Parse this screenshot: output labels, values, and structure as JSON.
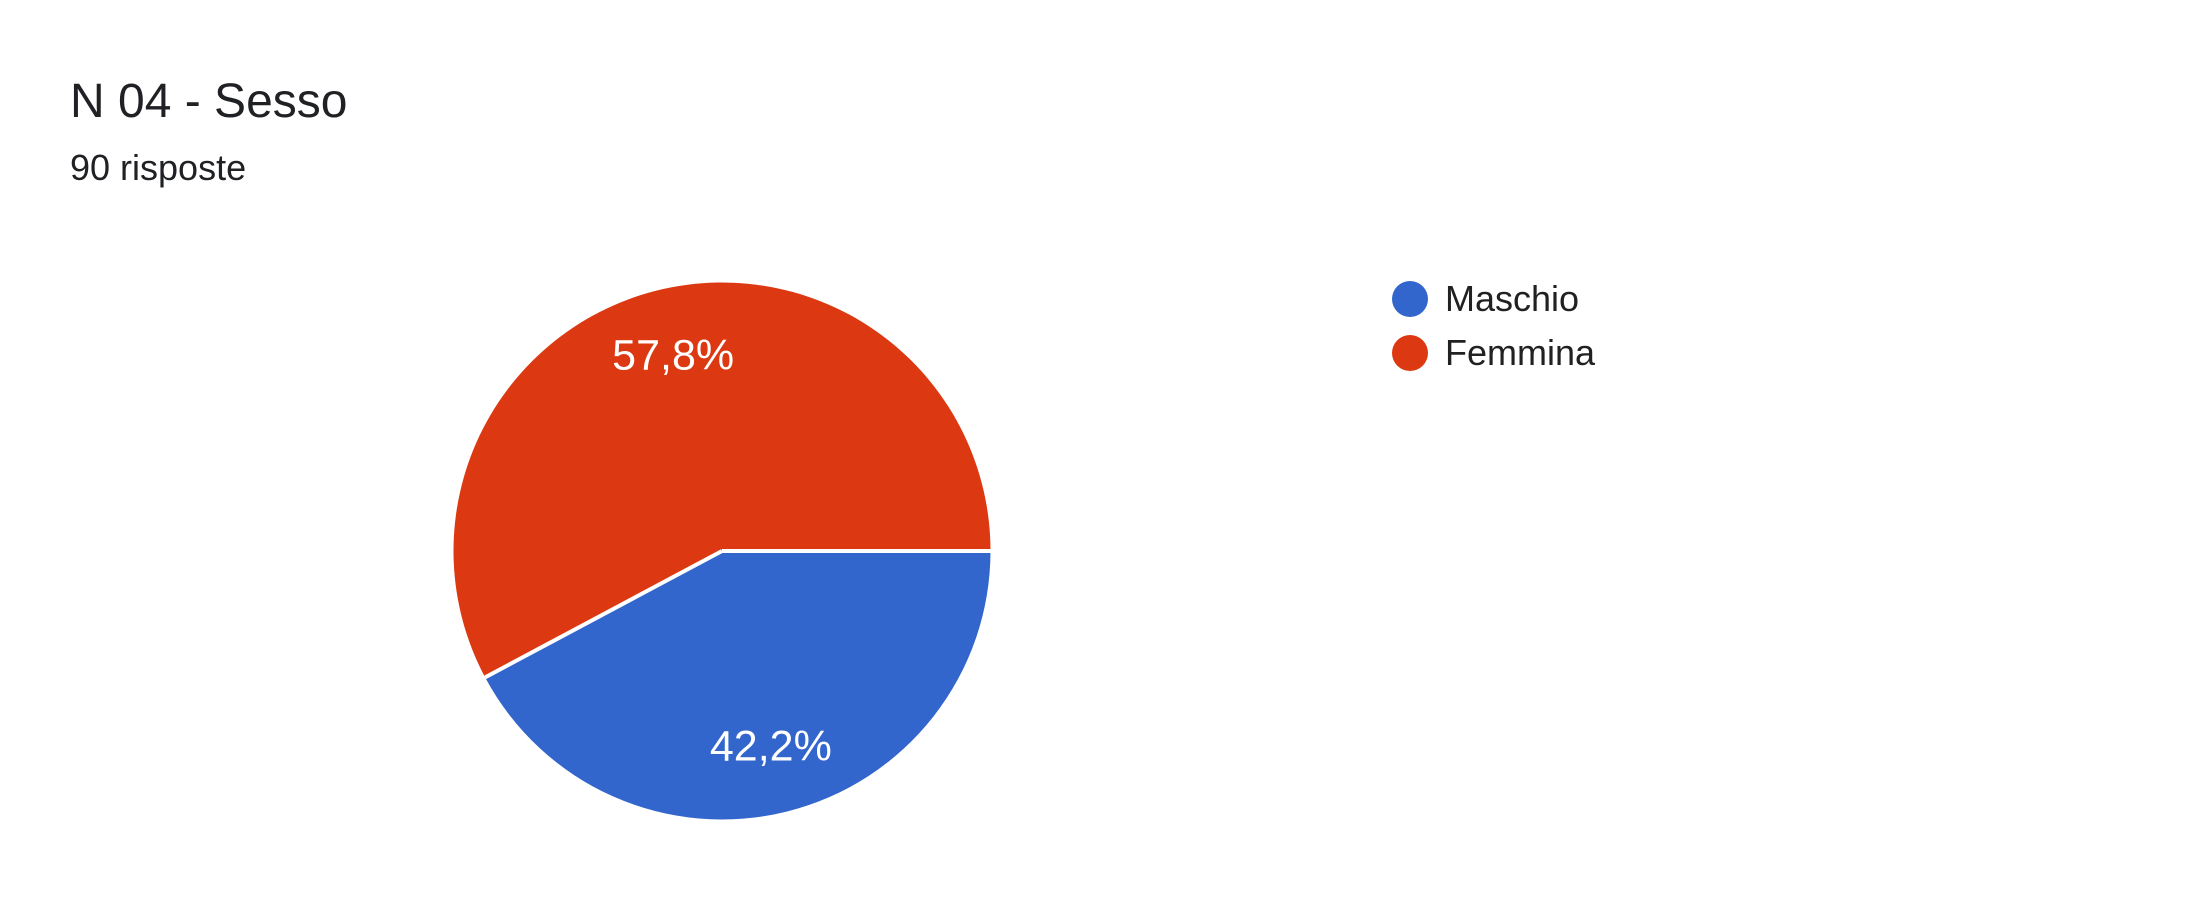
{
  "header": {
    "title": "N 04 - Sesso",
    "subtitle": "90 risposte"
  },
  "chart_data": {
    "type": "pie",
    "title": "N 04 - Sesso",
    "responses_note": "90 risposte",
    "legend_position": "right",
    "start_angle_deg": 0,
    "direction": "clockwise",
    "background": "#FFFFFF",
    "slice_label_color": "#FFFFFF",
    "separator_color": "#FFFFFF",
    "slices": [
      {
        "label": "Maschio",
        "percent": 42.2,
        "percent_label": "42,2%",
        "color": "#3366CC"
      },
      {
        "label": "Femmina",
        "percent": 57.8,
        "percent_label": "57,8%",
        "color": "#DC3912"
      }
    ]
  }
}
